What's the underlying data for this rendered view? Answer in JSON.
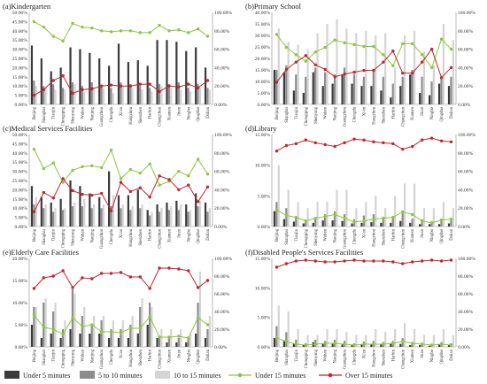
{
  "figure": {
    "legend": [
      {
        "label": "Under 5 minutes",
        "kind": "bar",
        "color": "#3a3a3a"
      },
      {
        "label": "5 to 10 minutes",
        "kind": "bar",
        "color": "#8c8c8c"
      },
      {
        "label": "10 to 15 minutes",
        "kind": "bar",
        "color": "#d4d4d4"
      },
      {
        "label": "Under 15 minutes",
        "kind": "line",
        "color": "#8dc63f"
      },
      {
        "label": "Over 15 minutes",
        "kind": "line",
        "color": "#c1272d"
      }
    ]
  },
  "chart_data": [
    {
      "type": "bar",
      "title": "(a)Kindergarten",
      "categories": [
        "Beijing",
        "Shanghai",
        "Tianjin",
        "Chongqing",
        "Shenyang",
        "Wuhan",
        "Nanjing",
        "Guangzhou",
        "Chengdu",
        "Xi'an",
        "Hangzhou",
        "Shenzhen",
        "Harbin",
        "Changchun",
        "Xiamen",
        "Jinan",
        "Ningbo",
        "Qingdao",
        "Dalian"
      ],
      "ylim": [
        0,
        50
      ],
      "yticks": [
        0,
        5,
        10,
        15,
        20,
        25,
        30,
        35,
        40,
        45,
        50
      ],
      "yfmt": "pct2",
      "y2lim": [
        0,
        100
      ],
      "y2ticks": [
        0,
        20,
        40,
        60,
        80,
        100
      ],
      "series": [
        {
          "name": "Under 5 minutes",
          "axis": "left",
          "values": [
            32,
            25,
            18,
            20,
            31,
            30,
            28,
            25,
            21,
            33,
            23,
            24,
            21,
            35,
            35,
            34,
            29,
            31,
            20
          ]
        },
        {
          "name": "5 to 10 minutes",
          "axis": "left",
          "values": [
            13,
            10,
            11,
            9,
            12,
            10,
            12,
            10,
            9,
            12,
            11,
            10,
            9,
            11,
            11,
            12,
            9,
            11,
            9
          ]
        },
        {
          "name": "10 to 15 minutes",
          "axis": "left",
          "values": [
            10,
            9,
            8,
            8,
            11,
            7,
            9,
            9,
            6,
            10,
            9,
            8,
            7,
            10,
            9,
            8,
            7,
            9,
            8
          ]
        },
        {
          "name": "Under 15 minutes",
          "axis": "right",
          "values": [
            90,
            84,
            74,
            69,
            88,
            84,
            83,
            80,
            79,
            80,
            80,
            78,
            78,
            86,
            80,
            81,
            78,
            82,
            74
          ]
        },
        {
          "name": "Over 15 minutes",
          "axis": "right",
          "values": [
            10,
            16,
            26,
            31,
            12,
            16,
            17,
            20,
            21,
            20,
            20,
            22,
            22,
            14,
            20,
            19,
            22,
            18,
            26
          ]
        }
      ]
    },
    {
      "type": "bar",
      "title": "(b)Primary School",
      "categories": [
        "Beijing",
        "Shanghai",
        "Tianjin",
        "Chongqing",
        "Shenyang",
        "Wuhan",
        "Nanjing",
        "Guangzhou",
        "Chengdu",
        "Xi'an",
        "Hangzhou",
        "Shenzhen",
        "Harbin",
        "Changchun",
        "Xiamen",
        "Jinan",
        "Ningbo",
        "Qingdao",
        "Dalian"
      ],
      "ylim": [
        0,
        40
      ],
      "yticks": [
        0,
        5,
        10,
        15,
        20,
        25,
        30,
        35,
        40
      ],
      "yfmt": "pct2",
      "y2lim": [
        0,
        100
      ],
      "y2ticks": [
        0,
        20,
        40,
        60,
        80,
        100
      ],
      "series": [
        {
          "name": "Under 5 minutes",
          "axis": "left",
          "values": [
            15,
            14,
            6,
            5,
            14,
            8,
            9,
            13,
            9,
            8,
            8,
            6,
            3,
            8,
            13,
            5,
            4,
            9,
            8
          ]
        },
        {
          "name": "5 to 10 minutes",
          "axis": "left",
          "values": [
            15,
            17,
            13,
            12,
            16,
            14,
            13,
            16,
            13,
            12,
            15,
            12,
            9,
            12,
            15,
            12,
            10,
            12,
            12
          ]
        },
        {
          "name": "10 to 15 minutes",
          "axis": "left",
          "values": [
            33,
            27,
            26,
            24,
            31,
            35,
            37,
            33,
            31,
            32,
            30,
            31,
            16,
            30,
            32,
            23,
            17,
            35,
            28
          ]
        },
        {
          "name": "Under 15 minutes",
          "axis": "right",
          "values": [
            76,
            62,
            54,
            47,
            57,
            62,
            70,
            67,
            65,
            63,
            63,
            54,
            42,
            66,
            66,
            54,
            40,
            71,
            60
          ]
        },
        {
          "name": "Over 15 minutes",
          "axis": "right",
          "values": [
            24,
            38,
            46,
            53,
            43,
            38,
            30,
            33,
            35,
            37,
            37,
            46,
            58,
            34,
            34,
            46,
            60,
            29,
            40
          ]
        }
      ]
    },
    {
      "type": "bar",
      "title": "(c)Medical Services Facilities",
      "categories": [
        "Beijing",
        "Shanghai",
        "Tianjin",
        "Chongqing",
        "Shenyang",
        "Wuhan",
        "Nanjing",
        "Guangzhou",
        "Chengdu",
        "Xi'an",
        "Hangzhou",
        "Shenzhen",
        "Harbin",
        "Changchun",
        "Xiamen",
        "Jinan",
        "Ningbo",
        "Qingdao",
        "Dalian"
      ],
      "ylim": [
        0,
        50
      ],
      "yticks": [
        0,
        5,
        10,
        15,
        20,
        25,
        30,
        35,
        40,
        45,
        50
      ],
      "yfmt": "pct2",
      "y2lim": [
        0,
        100
      ],
      "y2ticks": [
        0,
        20,
        40,
        60,
        80,
        100
      ],
      "series": [
        {
          "name": "Under 5 minutes",
          "axis": "left",
          "values": [
            22,
            16,
            13,
            15,
            25,
            22,
            18,
            16,
            30,
            17,
            17,
            20,
            9,
            12,
            13,
            14,
            12,
            18,
            13
          ]
        },
        {
          "name": "5 to 10 minutes",
          "axis": "left",
          "values": [
            12,
            10,
            8,
            9,
            11,
            11,
            10,
            10,
            11,
            10,
            9,
            10,
            6,
            8,
            9,
            9,
            8,
            11,
            8
          ]
        },
        {
          "name": "10 to 15 minutes",
          "axis": "left",
          "values": [
            16,
            12,
            10,
            10,
            13,
            15,
            12,
            12,
            17,
            12,
            11,
            12,
            8,
            10,
            11,
            12,
            9,
            14,
            10
          ]
        },
        {
          "name": "Under 15 minutes",
          "axis": "right",
          "values": [
            84,
            63,
            69,
            48,
            61,
            65,
            66,
            64,
            83,
            52,
            62,
            58,
            68,
            45,
            49,
            60,
            55,
            73,
            57
          ]
        },
        {
          "name": "Over 15 minutes",
          "axis": "right",
          "values": [
            16,
            37,
            31,
            52,
            39,
            35,
            34,
            36,
            17,
            48,
            38,
            42,
            32,
            55,
            51,
            40,
            45,
            27,
            43
          ]
        }
      ]
    },
    {
      "type": "bar",
      "title": "(d)Library",
      "categories": [
        "Beijing",
        "Shanghai",
        "Tianjin",
        "Chongqing",
        "Shenyang",
        "Wuhan",
        "Nanjing",
        "Guangzhou",
        "Chengdu",
        "Xi'an",
        "Hangzhou",
        "Shenzhen",
        "Harbin",
        "Changchun",
        "Xiamen",
        "Jinan",
        "Ningbo",
        "Qingdao",
        "Dalian"
      ],
      "ylim": [
        0,
        15
      ],
      "yticks": [
        0,
        5,
        10,
        15
      ],
      "yfmt": "pct2",
      "y2lim": [
        0,
        100
      ],
      "y2ticks": [
        0,
        20,
        40,
        60,
        80,
        100
      ],
      "series": [
        {
          "name": "Under 5 minutes",
          "axis": "left",
          "values": [
            2.5,
            1.2,
            0.8,
            0.5,
            0.6,
            1.0,
            1.0,
            0.9,
            0.5,
            0.6,
            0.7,
            0.6,
            0.6,
            0.9,
            0.6,
            0.4,
            0.4,
            0.4,
            0.5
          ]
        },
        {
          "name": "5 to 10 minutes",
          "axis": "left",
          "values": [
            4,
            3,
            1.5,
            1,
            1.5,
            2,
            2.5,
            2,
            1.2,
            1.8,
            2,
            1.6,
            1.5,
            2.2,
            1.3,
            1.2,
            0.9,
            1.3,
            1.2
          ]
        },
        {
          "name": "10 to 15 minutes",
          "axis": "left",
          "values": [
            10,
            6,
            4,
            3,
            4,
            4,
            6,
            6,
            3,
            4,
            5,
            3,
            5,
            7,
            7,
            3,
            3,
            4,
            3
          ]
        },
        {
          "name": "Under 15 minutes",
          "axis": "right",
          "values": [
            18,
            12,
            10,
            6,
            9,
            11,
            13,
            9,
            5,
            6,
            8,
            9,
            10,
            16,
            13,
            6,
            4,
            7,
            8
          ]
        },
        {
          "name": "Over 15 minutes",
          "axis": "right",
          "values": [
            82,
            88,
            90,
            94,
            91,
            89,
            87,
            91,
            95,
            94,
            92,
            91,
            90,
            84,
            87,
            94,
            96,
            93,
            92
          ]
        }
      ]
    },
    {
      "type": "bar",
      "title": "(e)Elderly Care Facilities",
      "categories": [
        "Beijing",
        "Shanghai",
        "Tianjin",
        "Chongqing",
        "Shenyang",
        "Wuhan",
        "Nanjing",
        "Guangzhou",
        "Chengdu",
        "Xi'an",
        "Hangzhou",
        "Shenzhen",
        "Harbin",
        "Changchun",
        "Xiamen",
        "Jinan",
        "Ningbo",
        "Qingdao",
        "Dalian"
      ],
      "ylim": [
        0,
        20
      ],
      "yticks": [
        0,
        5,
        10,
        15,
        20
      ],
      "yfmt": "pct2",
      "y2lim": [
        0,
        100
      ],
      "y2ticks": [
        0,
        20,
        40,
        60,
        80,
        100
      ],
      "series": [
        {
          "name": "Under 5 minutes",
          "axis": "left",
          "values": [
            5,
            2,
            3,
            2,
            4,
            3,
            3,
            3,
            2,
            2,
            2,
            3,
            5,
            2,
            1,
            1,
            1,
            3,
            2
          ]
        },
        {
          "name": "5 to 10 minutes",
          "axis": "left",
          "values": [
            9,
            10,
            8,
            4,
            13,
            7,
            5,
            6,
            4,
            4,
            5,
            9,
            10,
            2,
            2,
            2,
            2,
            10,
            4
          ]
        },
        {
          "name": "10 to 15 minutes",
          "axis": "left",
          "values": [
            9,
            11,
            10,
            6,
            12,
            9,
            7,
            7,
            6,
            6,
            7,
            11,
            9,
            4,
            4,
            4,
            3,
            17,
            7
          ]
        },
        {
          "name": "Under 15 minutes",
          "axis": "right",
          "values": [
            36,
            22,
            20,
            14,
            33,
            23,
            25,
            17,
            17,
            16,
            21,
            21,
            34,
            11,
            11,
            12,
            10,
            33,
            25
          ]
        },
        {
          "name": "Over 15 minutes",
          "axis": "right",
          "values": [
            66,
            78,
            80,
            86,
            67,
            78,
            77,
            83,
            83,
            84,
            79,
            79,
            66,
            89,
            89,
            88,
            86,
            67,
            75
          ]
        }
      ]
    },
    {
      "type": "bar",
      "title": "(f)Disabled People's Services Facilities",
      "categories": [
        "Beijing",
        "Shanghai",
        "Tianjin",
        "Chongqing",
        "Shenyang",
        "Wuhan",
        "Nanjing",
        "Guangzhou",
        "Chengdu",
        "Xi'an",
        "Hangzhou",
        "Shenzhen",
        "Harbin",
        "Changchun",
        "Xiamen",
        "Jinan",
        "Ningbo",
        "Qingdao",
        "Dalian"
      ],
      "ylim": [
        0,
        15
      ],
      "yticks": [
        0,
        5,
        10,
        15
      ],
      "yfmt": "pct2",
      "y2lim": [
        0,
        100
      ],
      "y2ticks": [
        0,
        20,
        40,
        60,
        80,
        100
      ],
      "series": [
        {
          "name": "Under 5 minutes",
          "axis": "left",
          "values": [
            1.5,
            1,
            0.6,
            0.3,
            0.8,
            0.5,
            0.5,
            0.4,
            0.3,
            0.4,
            0.4,
            0.4,
            0.5,
            0.5,
            0.3,
            0.3,
            0.2,
            0.4,
            0.3
          ]
        },
        {
          "name": "5 to 10 minutes",
          "axis": "left",
          "values": [
            3.5,
            2.5,
            1.2,
            0.6,
            1.2,
            1,
            1.2,
            1,
            0.6,
            0.9,
            1,
            0.8,
            1,
            1.5,
            0.8,
            0.7,
            0.5,
            0.8,
            0.6
          ]
        },
        {
          "name": "10 to 15 minutes",
          "axis": "left",
          "values": [
            7,
            6,
            3,
            2,
            2,
            3,
            3,
            2.5,
            2,
            2,
            3,
            2.5,
            3,
            4,
            3,
            2,
            2,
            3,
            2
          ]
        },
        {
          "name": "Under 15 minutes",
          "axis": "right",
          "values": [
            10,
            6,
            3,
            2,
            3,
            4,
            4,
            3,
            2,
            3,
            3,
            3,
            4,
            6,
            4,
            3,
            2,
            3,
            2
          ]
        },
        {
          "name": "Over 15 minutes",
          "axis": "right",
          "values": [
            90,
            94,
            97,
            98,
            97,
            96,
            96,
            97,
            98,
            97,
            97,
            97,
            96,
            94,
            96,
            97,
            98,
            97,
            98
          ]
        }
      ]
    }
  ]
}
